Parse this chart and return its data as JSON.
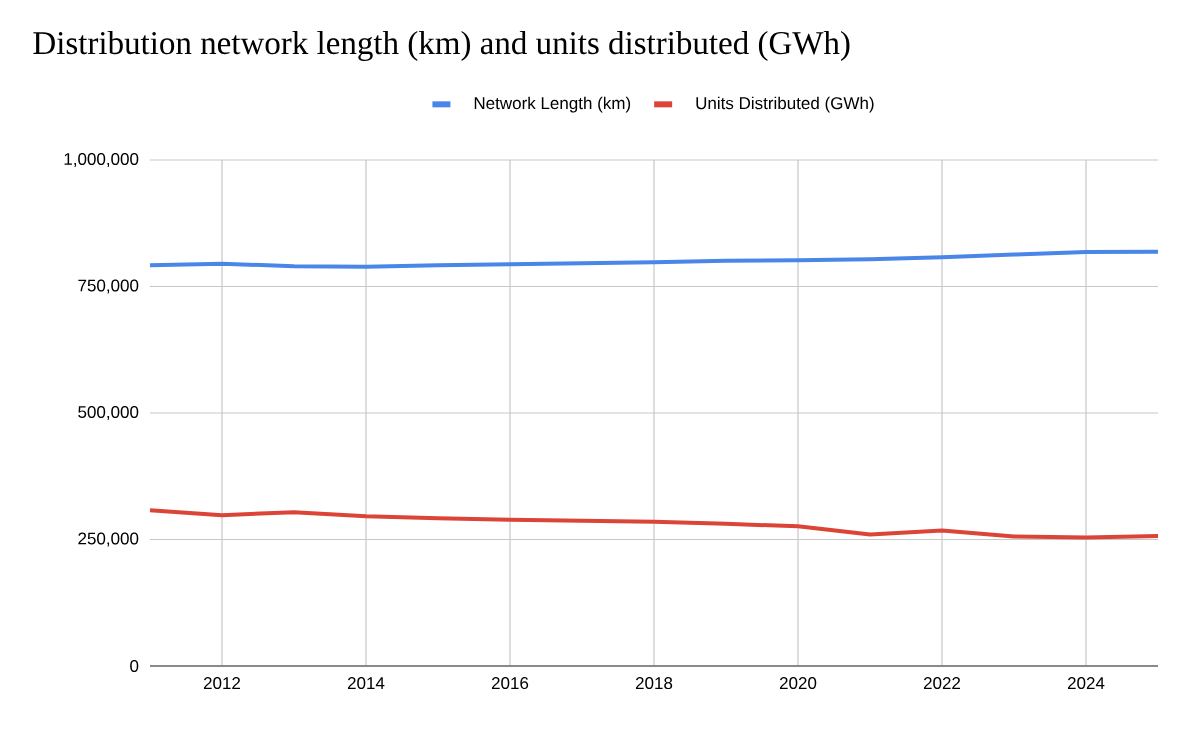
{
  "chart_data": {
    "type": "line",
    "title": "Distribution network length (km) and units distributed (GWh)",
    "x": [
      2011,
      2012,
      2013,
      2014,
      2015,
      2016,
      2017,
      2018,
      2019,
      2020,
      2021,
      2022,
      2023,
      2024,
      2025
    ],
    "series": [
      {
        "name": "Network Length (km)",
        "color": "#4a86e8",
        "values": [
          792000,
          795000,
          790000,
          789000,
          792000,
          794000,
          796000,
          798000,
          801000,
          802000,
          804000,
          808000,
          813000,
          818000,
          818500
        ]
      },
      {
        "name": "Units Distributed (GWh)",
        "color": "#db4437",
        "values": [
          308000,
          298000,
          304000,
          296000,
          292000,
          289000,
          287000,
          285000,
          281000,
          276000,
          260000,
          268000,
          256000,
          254000,
          257000
        ]
      }
    ],
    "xlim": [
      2011,
      2025
    ],
    "xticks": [
      2012,
      2014,
      2016,
      2018,
      2020,
      2022,
      2024
    ],
    "ylim": [
      0,
      1000000
    ],
    "yticks": [
      0,
      {
        "value": 250000,
        "label": "250,000"
      },
      {
        "value": 500000,
        "label": "500,000"
      },
      {
        "value": 750000,
        "label": "750,000"
      },
      {
        "value": 1000000,
        "label": "1,000,000"
      }
    ],
    "grid": true,
    "legend": "top",
    "marker": "none",
    "line_style": "solid"
  }
}
